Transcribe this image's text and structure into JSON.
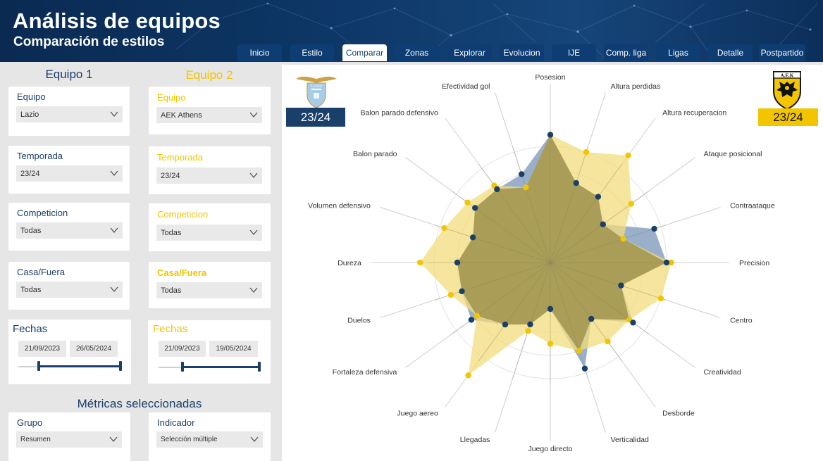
{
  "header": {
    "title": "Análisis de equipos",
    "subtitle": "Comparación de estilos"
  },
  "tabs": [
    {
      "label": "Inicio"
    },
    {
      "label": "Estilo"
    },
    {
      "label": "Comparar",
      "active": true
    },
    {
      "label": "Zonas"
    },
    {
      "label": "Explorar"
    },
    {
      "label": "Evolucion"
    },
    {
      "label": "IJE"
    },
    {
      "label": "Comp. liga"
    },
    {
      "label": "Ligas"
    },
    {
      "label": "Detalle"
    },
    {
      "label": "Postpartido"
    }
  ],
  "equipo1": {
    "header": "Equipo 1",
    "equipo_label": "Equipo",
    "equipo_value": "Lazio",
    "temporada_label": "Temporada",
    "temporada_value": "23/24",
    "competicion_label": "Competicion",
    "competicion_value": "Todas",
    "casa_label": "Casa/Fuera",
    "casa_value": "Todas",
    "fechas_label": "Fechas",
    "fecha_inicio": "21/09/2023",
    "fecha_fin": "26/05/2024"
  },
  "equipo2": {
    "header": "Equipo 2",
    "equipo_label": "Equipo",
    "equipo_value": "AEK Athens",
    "temporada_label": "Temporada",
    "temporada_value": "23/24",
    "competicion_label": "Competicion",
    "competicion_value": "Todas",
    "casa_label": "Casa/Fuera",
    "casa_value": "Todas",
    "fechas_label": "Fechas",
    "fecha_inicio": "21/09/2023",
    "fecha_fin": "19/05/2024"
  },
  "metricas": {
    "header": "Métricas seleccionadas",
    "grupo_label": "Grupo",
    "grupo_value": "Resumen",
    "indicador_label": "Indicador",
    "indicador_value": "Selección múltiple"
  },
  "badges": {
    "team1_season": "23/24",
    "team2_season": "23/24",
    "team1_logo_text": "S.S.LAZIO",
    "team2_logo_text": "A.E.K"
  },
  "colors": {
    "team1": "#1a3f6b",
    "team2": "#f2c500",
    "team1_fill": "#8fa7c4",
    "team2_fill": "#f3dc7b",
    "overlap_fill": "#a69a55",
    "header_bg": "#0d3766"
  },
  "icons": {
    "dropdown": "chevron-down-icon",
    "team1_logo": "lazio-eagle-crest",
    "team2_logo": "aek-double-headed-eagle-crest"
  },
  "chart_data": {
    "type": "radar",
    "rmax": 5,
    "grid_rings": 5,
    "axes": [
      "Posesion",
      "Altura perdidas",
      "Altura recuperacion",
      "Ataque posicional",
      "Contraataque",
      "Precision",
      "Centro",
      "Creatividad",
      "Desborde",
      "Verticalidad",
      "Juego directo",
      "Llegadas",
      "Juego aereo",
      "Fortaleza defensiva",
      "Duelos",
      "Dureza",
      "Volumen defensivo",
      "Balon parado",
      "Balon parado defensivo",
      "Efectividad gol"
    ],
    "series": [
      {
        "values": [
          5.5,
          3.6,
          3.5,
          2.8,
          4.7,
          5.0,
          3.2,
          4.4,
          3.0,
          4.8,
          2.0,
          2.8,
          3.3,
          4.2,
          4.0,
          4.0,
          3.5,
          4.0,
          3.9,
          4.0
        ]
      },
      {
        "values": [
          5.5,
          5.0,
          5.7,
          4.3,
          3.3,
          5.2,
          5.0,
          4.2,
          4.2,
          4.0,
          3.5,
          3.1,
          6.0,
          3.9,
          4.5,
          5.6,
          4.8,
          4.4,
          4.1,
          3.4
        ]
      }
    ]
  }
}
